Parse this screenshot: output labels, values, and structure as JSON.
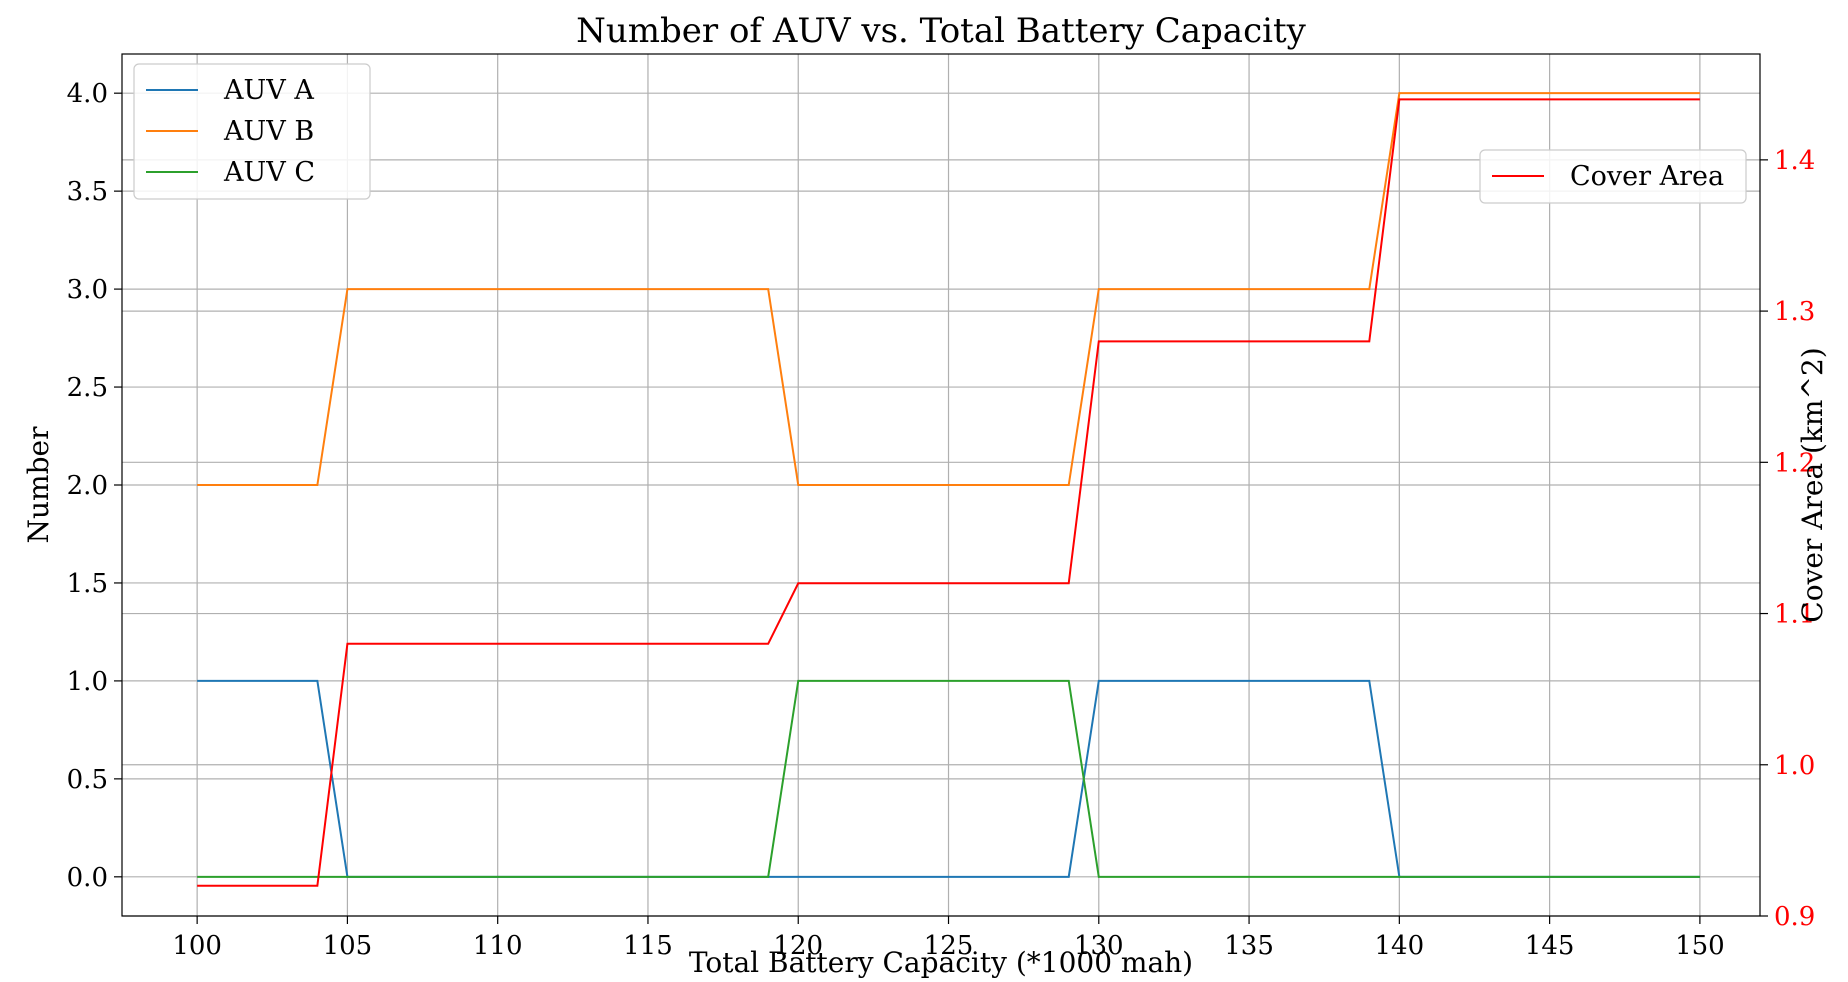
{
  "chart_data": {
    "type": "line",
    "title": "Number of AUV vs. Total Battery Capacity",
    "xlabel": "Total Battery Capacity (*1000 mah)",
    "ylabel": "Number",
    "y2label": "Cover Area (km^2)",
    "xlim": [
      97.5,
      152
    ],
    "ylim": [
      -0.2,
      4.2
    ],
    "y2lim": [
      0.9,
      1.47
    ],
    "x_ticks": [
      100,
      105,
      110,
      115,
      120,
      125,
      130,
      135,
      140,
      145,
      150
    ],
    "y_ticks": [
      0.0,
      0.5,
      1.0,
      1.5,
      2.0,
      2.5,
      3.0,
      3.5,
      4.0
    ],
    "y2_ticks": [
      0.9,
      1.0,
      1.1,
      1.2,
      1.3,
      1.4
    ],
    "grid": true,
    "legend_left_position": "top-left",
    "legend_right_position": "upper-right",
    "x": [
      100,
      104,
      105,
      119,
      120,
      129,
      130,
      139,
      140,
      150
    ],
    "series": [
      {
        "name": "AUV A",
        "axis": "left",
        "color": "#1f77b4",
        "values": [
          1,
          1,
          0,
          0,
          0,
          0,
          1,
          1,
          0,
          0
        ]
      },
      {
        "name": "AUV B",
        "axis": "left",
        "color": "#ff7f0e",
        "values": [
          2,
          2,
          3,
          3,
          2,
          2,
          3,
          3,
          4,
          4
        ]
      },
      {
        "name": "AUV C",
        "axis": "left",
        "color": "#2ca02c",
        "values": [
          0,
          0,
          0,
          0,
          1,
          1,
          0,
          0,
          0,
          0
        ]
      },
      {
        "name": "Cover Area",
        "axis": "right",
        "color": "#ff0000",
        "values": [
          0.92,
          0.92,
          1.08,
          1.08,
          1.12,
          1.12,
          1.28,
          1.28,
          1.44,
          1.44
        ]
      }
    ],
    "right_axis_color": "#ff0000"
  }
}
